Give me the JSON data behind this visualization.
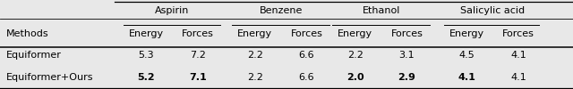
{
  "col_groups": [
    "Aspirin",
    "Benzene",
    "Ethanol",
    "Salicylic acid"
  ],
  "sub_cols": [
    "Energy",
    "Forces"
  ],
  "row_labels": [
    "Equiformer",
    "Equiformer+Ours"
  ],
  "data_str_vals": [
    [
      "5.3",
      "7.2",
      "2.2",
      "6.6",
      "2.2",
      "3.1",
      "4.5",
      "4.1"
    ],
    [
      "5.2",
      "7.1",
      "2.2",
      "6.6",
      "2.0",
      "2.9",
      "4.1",
      "4.1"
    ]
  ],
  "bold_mask": [
    [
      false,
      false,
      false,
      false,
      false,
      false,
      false,
      false
    ],
    [
      true,
      true,
      false,
      false,
      true,
      true,
      true,
      false
    ]
  ],
  "background_color": "#e8e8e8",
  "font_family": "DejaVu Sans",
  "font_size": 8.0
}
